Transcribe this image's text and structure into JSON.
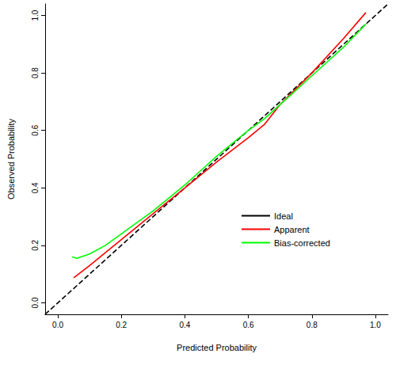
{
  "chart_data": {
    "type": "line",
    "x_label": "Predicted Probability",
    "y_label": "Observed Probability",
    "xlim": [
      -0.04,
      1.04
    ],
    "ylim": [
      -0.04,
      1.04
    ],
    "xticks": [
      {
        "value": 0,
        "label": "0.0"
      },
      {
        "value": 0.2,
        "label": "0.2"
      },
      {
        "value": 0.4,
        "label": "0.4"
      },
      {
        "value": 0.6,
        "label": "0.6"
      },
      {
        "value": 0.8,
        "label": "0.8"
      },
      {
        "value": 1,
        "label": "1.0"
      }
    ],
    "yticks": [
      {
        "value": 0,
        "label": "0.0"
      },
      {
        "value": 0.2,
        "label": "0.2"
      },
      {
        "value": 0.4,
        "label": "0.4"
      },
      {
        "value": 0.6,
        "label": "0.6"
      },
      {
        "value": 0.8,
        "label": "0.8"
      },
      {
        "value": 1,
        "label": "1.0"
      }
    ],
    "grid": false,
    "legend": "right",
    "series": [
      {
        "name": "Ideal",
        "color": "#000000",
        "line_style": "dashed",
        "x": [
          -0.04,
          1.04
        ],
        "values": [
          -0.04,
          1.04
        ]
      },
      {
        "name": "Apparent",
        "color": "#ff0000",
        "line_style": "solid",
        "x": [
          0.05,
          0.1,
          0.2,
          0.3,
          0.4,
          0.5,
          0.6,
          0.65,
          0.7,
          0.8,
          0.9,
          0.97
        ],
        "values": [
          0.087,
          0.13,
          0.22,
          0.31,
          0.4,
          0.49,
          0.575,
          0.62,
          0.69,
          0.8,
          0.92,
          1.01
        ]
      },
      {
        "name": "Bias-corrected",
        "color": "#00ff00",
        "line_style": "solid",
        "x": [
          0.045,
          0.06,
          0.1,
          0.15,
          0.2,
          0.3,
          0.4,
          0.45,
          0.5,
          0.6,
          0.65,
          0.7,
          0.8,
          0.9,
          0.97
        ],
        "values": [
          0.16,
          0.155,
          0.17,
          0.2,
          0.24,
          0.32,
          0.41,
          0.46,
          0.51,
          0.6,
          0.64,
          0.69,
          0.79,
          0.89,
          0.97
        ]
      }
    ]
  }
}
